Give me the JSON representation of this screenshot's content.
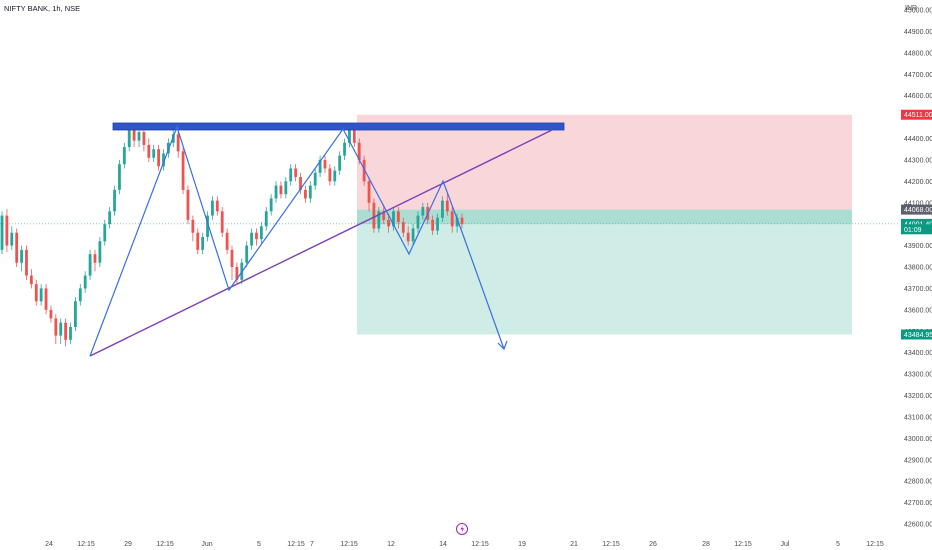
{
  "header": {
    "title": "NIFTY BANK, 1h, NSE"
  },
  "currency": "INR",
  "colors": {
    "up": "#26a69a",
    "down": "#ef5350",
    "pattern": "#3a6fe0",
    "trendline": "#7b3fb8",
    "resistance": "#2f55c9",
    "stop_zone": "#f7c5cb",
    "target_zone": "#bfe6dd",
    "current_badge": "#0b9981",
    "stop_badge": "#f23645",
    "entry_badge": "#5d606b"
  },
  "chart_data": {
    "type": "candlestick",
    "title": "NIFTY BANK, 1h, NSE",
    "y_ticks": [
      "45000.00",
      "44900.00",
      "44800.00",
      "44700.00",
      "44600.00",
      "44500.00",
      "44400.00",
      "44300.00",
      "44200.00",
      "44100.00",
      "44000.00",
      "43900.00",
      "43800.00",
      "43700.00",
      "43600.00",
      "43500.00",
      "43400.00",
      "43300.00",
      "43200.00",
      "43100.00",
      "43000.00",
      "42900.00",
      "42800.00",
      "42700.00",
      "42600.00"
    ],
    "ylim": [
      42590,
      45050
    ],
    "x_ticks": [
      "24",
      "12:15",
      "29",
      "12:15",
      "Jun",
      "5",
      "12:15",
      "7",
      "12:15",
      "12",
      "14",
      "12:15",
      "19",
      "21",
      "12:15",
      "26",
      "28",
      "12:15",
      "Jul",
      "5",
      "12:15"
    ],
    "price_badges": [
      {
        "label": "44511.00",
        "kind": "stop",
        "value": 44511
      },
      {
        "label": "44068.00",
        "kind": "entry",
        "value": 44068
      },
      {
        "label": "44001.40",
        "kind": "current",
        "value": 44001.4
      },
      {
        "label": "01:09",
        "kind": "countdown",
        "value": 43976
      },
      {
        "label": "43484.95",
        "kind": "target",
        "value": 43484.95
      }
    ],
    "current_price": 44001.4,
    "candles_approx": [
      [
        43880,
        44040,
        43860,
        44060
      ],
      [
        44040,
        43900,
        43870,
        44070
      ],
      [
        43900,
        43960,
        43880,
        43990
      ],
      [
        43960,
        43820,
        43800,
        43980
      ],
      [
        43820,
        43880,
        43780,
        43900
      ],
      [
        43880,
        43760,
        43740,
        43900
      ],
      [
        43760,
        43720,
        43700,
        43790
      ],
      [
        43720,
        43640,
        43620,
        43740
      ],
      [
        43640,
        43700,
        43620,
        43720
      ],
      [
        43700,
        43600,
        43580,
        43720
      ],
      [
        43600,
        43560,
        43540,
        43620
      ],
      [
        43560,
        43480,
        43440,
        43580
      ],
      [
        43480,
        43540,
        43440,
        43560
      ],
      [
        43540,
        43460,
        43430,
        43560
      ],
      [
        43460,
        43520,
        43440,
        43540
      ],
      [
        43520,
        43640,
        43500,
        43660
      ],
      [
        43640,
        43700,
        43620,
        43720
      ],
      [
        43700,
        43760,
        43680,
        43780
      ],
      [
        43760,
        43860,
        43740,
        43880
      ],
      [
        43860,
        43820,
        43780,
        43880
      ],
      [
        43820,
        43920,
        43800,
        43940
      ],
      [
        43920,
        44000,
        43900,
        44020
      ],
      [
        44000,
        44060,
        43980,
        44080
      ],
      [
        44060,
        44160,
        44040,
        44180
      ],
      [
        44160,
        44280,
        44140,
        44300
      ],
      [
        44280,
        44360,
        44260,
        44380
      ],
      [
        44360,
        44440,
        44340,
        44460
      ],
      [
        44440,
        44390,
        44360,
        44460
      ],
      [
        44390,
        44430,
        44360,
        44460
      ],
      [
        44430,
        44370,
        44340,
        44450
      ],
      [
        44370,
        44310,
        44290,
        44400
      ],
      [
        44310,
        44350,
        44290,
        44370
      ],
      [
        44350,
        44270,
        44250,
        44370
      ],
      [
        44270,
        44330,
        44250,
        44350
      ],
      [
        44330,
        44380,
        44310,
        44400
      ],
      [
        44380,
        44420,
        44360,
        44450
      ],
      [
        44420,
        44340,
        44310,
        44440
      ],
      [
        44340,
        44160,
        44140,
        44360
      ],
      [
        44160,
        44020,
        44000,
        44180
      ],
      [
        44020,
        43960,
        43920,
        44040
      ],
      [
        43960,
        43880,
        43860,
        43980
      ],
      [
        43880,
        43940,
        43860,
        43960
      ],
      [
        43940,
        44040,
        43920,
        44060
      ],
      [
        44040,
        44110,
        44020,
        44130
      ],
      [
        44110,
        44060,
        44040,
        44130
      ],
      [
        44060,
        43960,
        43940,
        44080
      ],
      [
        43960,
        43880,
        43860,
        43980
      ],
      [
        43880,
        43800,
        43740,
        43900
      ],
      [
        43800,
        43740,
        43720,
        43820
      ],
      [
        43740,
        43820,
        43720,
        43840
      ],
      [
        43820,
        43900,
        43800,
        43920
      ],
      [
        43900,
        43960,
        43880,
        43980
      ],
      [
        43960,
        43930,
        43900,
        43980
      ],
      [
        43930,
        43990,
        43910,
        44010
      ],
      [
        43990,
        44060,
        43970,
        44080
      ],
      [
        44060,
        44120,
        44040,
        44140
      ],
      [
        44120,
        44180,
        44100,
        44200
      ],
      [
        44180,
        44140,
        44120,
        44200
      ],
      [
        44140,
        44200,
        44120,
        44220
      ],
      [
        44200,
        44260,
        44180,
        44280
      ],
      [
        44260,
        44220,
        44200,
        44280
      ],
      [
        44220,
        44160,
        44140,
        44240
      ],
      [
        44160,
        44120,
        44100,
        44180
      ],
      [
        44120,
        44180,
        44100,
        44200
      ],
      [
        44180,
        44240,
        44160,
        44260
      ],
      [
        44240,
        44300,
        44220,
        44320
      ],
      [
        44300,
        44260,
        44240,
        44320
      ],
      [
        44260,
        44200,
        44180,
        44280
      ],
      [
        44200,
        44250,
        44180,
        44270
      ],
      [
        44250,
        44320,
        44230,
        44340
      ],
      [
        44320,
        44380,
        44300,
        44400
      ],
      [
        44380,
        44440,
        44360,
        44460
      ],
      [
        44440,
        44380,
        44360,
        44470
      ],
      [
        44380,
        44300,
        44280,
        44400
      ],
      [
        44300,
        44200,
        44180,
        44320
      ],
      [
        44200,
        44100,
        44060,
        44220
      ],
      [
        44100,
        43980,
        43960,
        44120
      ],
      [
        43980,
        44060,
        43960,
        44080
      ],
      [
        44060,
        44020,
        44000,
        44090
      ],
      [
        44020,
        43990,
        43960,
        44050
      ],
      [
        43990,
        44060,
        43970,
        44080
      ],
      [
        44060,
        44010,
        43980,
        44080
      ],
      [
        44010,
        43960,
        43940,
        44030
      ],
      [
        43960,
        43920,
        43900,
        43990
      ],
      [
        43920,
        43980,
        43900,
        44000
      ],
      [
        43980,
        44040,
        43960,
        44060
      ],
      [
        44040,
        44080,
        44020,
        44100
      ],
      [
        44080,
        44020,
        44000,
        44100
      ],
      [
        44020,
        43970,
        43950,
        44040
      ],
      [
        43970,
        44030,
        43950,
        44050
      ],
      [
        44030,
        44110,
        44010,
        44130
      ],
      [
        44110,
        44060,
        44040,
        44140
      ],
      [
        44060,
        43990,
        43960,
        44080
      ],
      [
        43990,
        44030,
        43960,
        44050
      ],
      [
        44030,
        44000,
        43980,
        44050
      ]
    ],
    "pattern_points_approx": [
      [
        43420,
        0
      ],
      [
        44470,
        0
      ],
      [
        43840,
        0
      ],
      [
        44450,
        0
      ],
      [
        43710,
        0
      ],
      [
        44450,
        0
      ],
      [
        44120,
        0
      ],
      [
        43890,
        0
      ],
      [
        44200,
        0
      ],
      [
        44000,
        0
      ],
      [
        43430,
        0
      ]
    ]
  }
}
